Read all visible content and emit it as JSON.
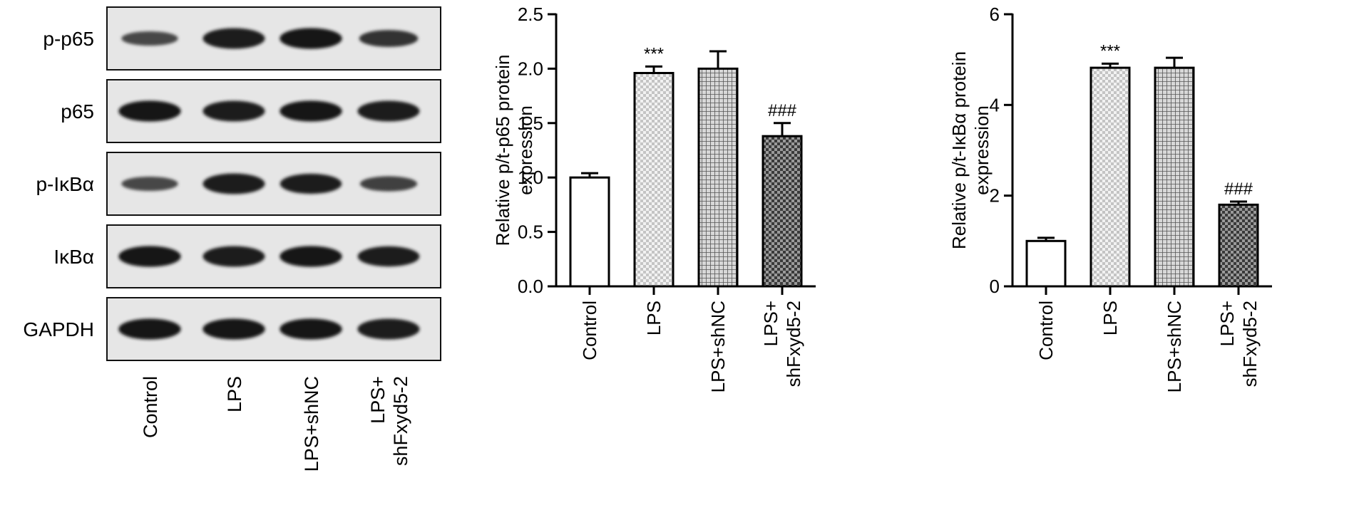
{
  "blot": {
    "rows": [
      {
        "label": "p-p65",
        "intensities": [
          0.55,
          0.95,
          0.97,
          0.72
        ]
      },
      {
        "label": "p65",
        "intensities": [
          0.97,
          0.95,
          0.97,
          0.95
        ]
      },
      {
        "label": "p-IκBα",
        "intensities": [
          0.55,
          0.95,
          0.92,
          0.6
        ]
      },
      {
        "label": "IκBα",
        "intensities": [
          0.97,
          0.95,
          0.97,
          0.93
        ]
      },
      {
        "label": "GAPDH",
        "intensities": [
          0.97,
          0.97,
          0.97,
          0.95
        ]
      }
    ],
    "lanes": [
      [
        "Control"
      ],
      [
        "LPS"
      ],
      [
        "LPS+shNC"
      ],
      [
        "LPS+",
        "shFxyd5-2"
      ]
    ]
  },
  "chart_data": [
    {
      "type": "bar",
      "categories": [
        [
          "Control"
        ],
        [
          "LPS"
        ],
        [
          "LPS+shNC"
        ],
        [
          "LPS+",
          "shFxyd5-2"
        ]
      ],
      "values": [
        1.0,
        1.96,
        2.0,
        1.38
      ],
      "errors": [
        0.04,
        0.06,
        0.16,
        0.12
      ],
      "annotations": [
        "",
        "***",
        "",
        "###"
      ],
      "ylabel": [
        "Relative p/t-p65 protein",
        "expression"
      ],
      "ylim": [
        0,
        2.5
      ],
      "yticks": [
        "0.0",
        "0.5",
        "1.0",
        "1.5",
        "2.0",
        "2.5"
      ],
      "patterns": [
        "none",
        "light-checker",
        "grid",
        "dark-checker"
      ]
    },
    {
      "type": "bar",
      "categories": [
        [
          "Control"
        ],
        [
          "LPS"
        ],
        [
          "LPS+shNC"
        ],
        [
          "LPS+",
          "shFxyd5-2"
        ]
      ],
      "values": [
        1.0,
        4.82,
        4.82,
        1.8
      ],
      "errors": [
        0.07,
        0.09,
        0.22,
        0.07
      ],
      "annotations": [
        "",
        "***",
        "",
        "###"
      ],
      "ylabel": [
        "Relative p/t-IκBα protein",
        "expression"
      ],
      "ylim": [
        0,
        6
      ],
      "yticks": [
        "0",
        "2",
        "4",
        "6"
      ],
      "patterns": [
        "none",
        "light-checker",
        "grid",
        "dark-checker"
      ]
    }
  ]
}
